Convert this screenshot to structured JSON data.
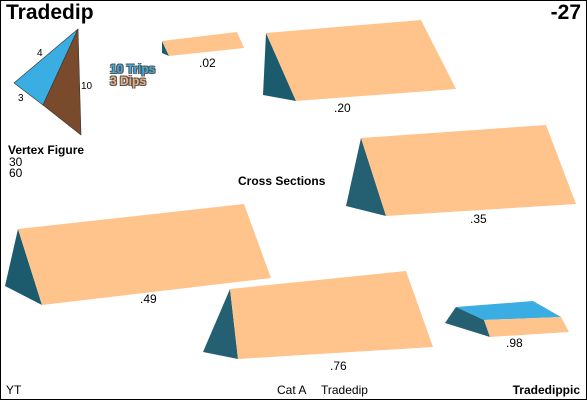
{
  "header": {
    "title": "Tradedip",
    "code": "-27"
  },
  "vertex_figure": {
    "label": "Vertex Figure",
    "angles": [
      "30",
      "60"
    ],
    "edges": [
      "4",
      "3",
      "10"
    ],
    "colors": {
      "top": "#3aaee2",
      "side": "#7a4a2c"
    }
  },
  "legend": {
    "trips": "10 Trips",
    "dips": "3 Dips"
  },
  "colors": {
    "peach": "#ffc38c",
    "teal_dark": "#1c5a6e",
    "teal_mid": "#245f72",
    "sky": "#3aaee2"
  },
  "sections": {
    "label": "Cross Sections",
    "values": [
      ".02",
      ".20",
      ".35",
      ".49",
      ".76",
      ".98"
    ]
  },
  "footer": {
    "left": "YT",
    "category": "Cat A",
    "name": "Tradedip",
    "name_bold": "Tradedippic"
  }
}
